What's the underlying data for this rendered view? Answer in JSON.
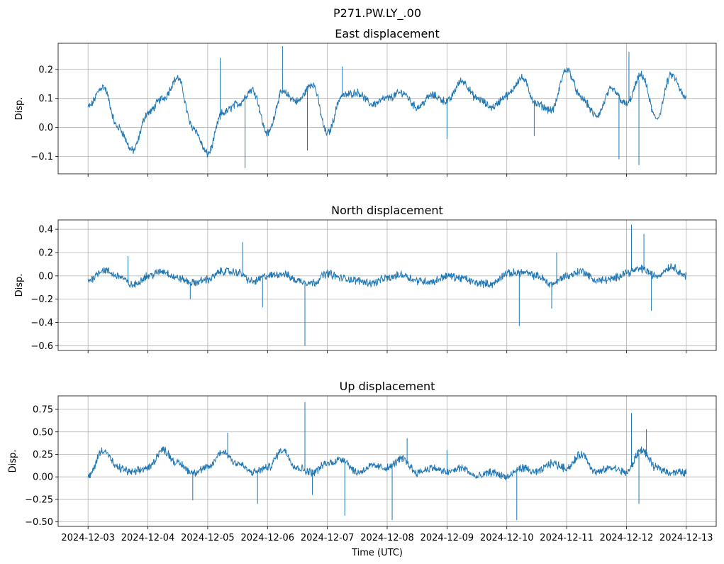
{
  "figure": {
    "suptitle": "P271.PW.LY_.00",
    "xlabel": "Time (UTC)"
  },
  "colors": {
    "line": "#1f77b4",
    "grid": "#b0b0b0",
    "axis": "#000000"
  },
  "chart_data": [
    {
      "type": "line",
      "title": "East displacement",
      "xlabel": "",
      "ylabel": "Disp.",
      "grid": true,
      "x_ticks": [
        "2024-12-03",
        "2024-12-04",
        "2024-12-05",
        "2024-12-06",
        "2024-12-07",
        "2024-12-08",
        "2024-12-09",
        "2024-12-10",
        "2024-12-11",
        "2024-12-12",
        "2024-12-13"
      ],
      "xlim": [
        "2024-12-02T12:00",
        "2024-12-13T12:00"
      ],
      "ylim": [
        -0.16,
        0.29
      ],
      "y_ticks": [
        -0.1,
        0.0,
        0.1,
        0.2
      ],
      "y_tick_labels": [
        "−0.1",
        "0.0",
        "0.1",
        "0.2"
      ],
      "series": [
        {
          "x": [
            "2024-12-03T00:00",
            "2024-12-03T06:00",
            "2024-12-03T12:00",
            "2024-12-03T18:00",
            "2024-12-04T00:00",
            "2024-12-04T06:00",
            "2024-12-04T12:00",
            "2024-12-04T18:00",
            "2024-12-05T00:00",
            "2024-12-05T06:00",
            "2024-12-05T12:00",
            "2024-12-05T18:00",
            "2024-12-06T00:00",
            "2024-12-06T06:00",
            "2024-12-06T12:00",
            "2024-12-06T18:00",
            "2024-12-07T00:00",
            "2024-12-07T06:00",
            "2024-12-07T12:00",
            "2024-12-07T18:00",
            "2024-12-08T00:00",
            "2024-12-08T06:00",
            "2024-12-08T12:00",
            "2024-12-08T18:00",
            "2024-12-09T00:00",
            "2024-12-09T06:00",
            "2024-12-09T12:00",
            "2024-12-09T18:00",
            "2024-12-10T00:00",
            "2024-12-10T06:00",
            "2024-12-10T12:00",
            "2024-12-10T18:00",
            "2024-12-11T00:00",
            "2024-12-11T06:00",
            "2024-12-11T12:00",
            "2024-12-11T18:00",
            "2024-12-12T00:00",
            "2024-12-12T06:00",
            "2024-12-12T12:00",
            "2024-12-12T18:00",
            "2024-12-13T00:00"
          ],
          "values": [
            0.07,
            0.14,
            0.0,
            -0.08,
            0.05,
            0.1,
            0.17,
            0.0,
            -0.09,
            0.05,
            0.08,
            0.13,
            -0.02,
            0.12,
            0.09,
            0.15,
            -0.02,
            0.11,
            0.12,
            0.08,
            0.1,
            0.12,
            0.07,
            0.11,
            0.09,
            0.16,
            0.1,
            0.07,
            0.11,
            0.17,
            0.08,
            0.06,
            0.2,
            0.1,
            0.04,
            0.13,
            0.08,
            0.18,
            0.03,
            0.18,
            0.1
          ]
        }
      ],
      "spikes": [
        {
          "x": "2024-12-05T05:00",
          "value": 0.24
        },
        {
          "x": "2024-12-05T15:00",
          "value": -0.14
        },
        {
          "x": "2024-12-06T06:00",
          "value": 0.28
        },
        {
          "x": "2024-12-06T16:00",
          "value": -0.08
        },
        {
          "x": "2024-12-07T06:00",
          "value": 0.21
        },
        {
          "x": "2024-12-09T00:00",
          "value": -0.04
        },
        {
          "x": "2024-12-10T11:00",
          "value": -0.03
        },
        {
          "x": "2024-12-11T21:00",
          "value": -0.11
        },
        {
          "x": "2024-12-12T01:00",
          "value": 0.26
        },
        {
          "x": "2024-12-12T05:00",
          "value": -0.13
        }
      ]
    },
    {
      "type": "line",
      "title": "North displacement",
      "xlabel": "",
      "ylabel": "Disp.",
      "grid": true,
      "x_ticks": [
        "2024-12-03",
        "2024-12-04",
        "2024-12-05",
        "2024-12-06",
        "2024-12-07",
        "2024-12-08",
        "2024-12-09",
        "2024-12-10",
        "2024-12-11",
        "2024-12-12",
        "2024-12-13"
      ],
      "xlim": [
        "2024-12-02T12:00",
        "2024-12-13T12:00"
      ],
      "ylim": [
        -0.64,
        0.48
      ],
      "y_ticks": [
        -0.6,
        -0.4,
        -0.2,
        0.0,
        0.2,
        0.4
      ],
      "y_tick_labels": [
        "−0.6",
        "−0.4",
        "−0.2",
        "0.0",
        "0.2",
        "0.4"
      ],
      "series": [
        {
          "x": [
            "2024-12-03T00:00",
            "2024-12-03T06:00",
            "2024-12-03T12:00",
            "2024-12-03T18:00",
            "2024-12-04T00:00",
            "2024-12-04T06:00",
            "2024-12-04T12:00",
            "2024-12-04T18:00",
            "2024-12-05T00:00",
            "2024-12-05T06:00",
            "2024-12-05T12:00",
            "2024-12-05T18:00",
            "2024-12-06T00:00",
            "2024-12-06T06:00",
            "2024-12-06T12:00",
            "2024-12-06T18:00",
            "2024-12-07T00:00",
            "2024-12-07T06:00",
            "2024-12-07T12:00",
            "2024-12-07T18:00",
            "2024-12-08T00:00",
            "2024-12-08T06:00",
            "2024-12-08T12:00",
            "2024-12-08T18:00",
            "2024-12-09T00:00",
            "2024-12-09T06:00",
            "2024-12-09T12:00",
            "2024-12-09T18:00",
            "2024-12-10T00:00",
            "2024-12-10T06:00",
            "2024-12-10T12:00",
            "2024-12-10T18:00",
            "2024-12-11T00:00",
            "2024-12-11T06:00",
            "2024-12-11T12:00",
            "2024-12-11T18:00",
            "2024-12-12T00:00",
            "2024-12-12T06:00",
            "2024-12-12T12:00",
            "2024-12-12T18:00",
            "2024-12-13T00:00"
          ],
          "values": [
            -0.04,
            0.05,
            0.0,
            -0.08,
            0.0,
            0.04,
            -0.02,
            -0.06,
            -0.03,
            0.04,
            0.03,
            -0.05,
            0.0,
            0.02,
            -0.04,
            -0.06,
            0.02,
            -0.02,
            -0.04,
            -0.06,
            -0.02,
            0.01,
            -0.04,
            -0.05,
            0.0,
            -0.02,
            -0.06,
            -0.07,
            0.02,
            0.03,
            0.0,
            -0.07,
            0.0,
            0.04,
            -0.04,
            -0.03,
            0.03,
            0.06,
            0.0,
            0.08,
            0.0
          ]
        }
      ],
      "spikes": [
        {
          "x": "2024-12-03T16:00",
          "value": 0.17
        },
        {
          "x": "2024-12-04T17:00",
          "value": -0.2
        },
        {
          "x": "2024-12-05T14:00",
          "value": 0.29
        },
        {
          "x": "2024-12-05T22:00",
          "value": -0.27
        },
        {
          "x": "2024-12-06T15:00",
          "value": -0.6
        },
        {
          "x": "2024-12-10T05:00",
          "value": -0.43
        },
        {
          "x": "2024-12-10T18:00",
          "value": -0.28
        },
        {
          "x": "2024-12-10T20:00",
          "value": 0.2
        },
        {
          "x": "2024-12-12T02:00",
          "value": 0.44
        },
        {
          "x": "2024-12-12T07:00",
          "value": 0.36
        },
        {
          "x": "2024-12-12T10:00",
          "value": -0.3
        }
      ]
    },
    {
      "type": "line",
      "title": "Up displacement",
      "xlabel": "Time (UTC)",
      "ylabel": "Disp.",
      "grid": true,
      "x_ticks": [
        "2024-12-03",
        "2024-12-04",
        "2024-12-05",
        "2024-12-06",
        "2024-12-07",
        "2024-12-08",
        "2024-12-09",
        "2024-12-10",
        "2024-12-11",
        "2024-12-12",
        "2024-12-13"
      ],
      "x_tick_labels": [
        "2024-12-03",
        "2024-12-04",
        "2024-12-05",
        "2024-12-06",
        "2024-12-07",
        "2024-12-08",
        "2024-12-09",
        "2024-12-10",
        "2024-12-11",
        "2024-12-12",
        "2024-12-13"
      ],
      "xlim": [
        "2024-12-02T12:00",
        "2024-12-13T12:00"
      ],
      "ylim": [
        -0.55,
        0.9
      ],
      "y_ticks": [
        -0.5,
        -0.25,
        0.0,
        0.25,
        0.5,
        0.75
      ],
      "y_tick_labels": [
        "−0.50",
        "−0.25",
        "0.00",
        "0.25",
        "0.50",
        "0.75"
      ],
      "series": [
        {
          "x": [
            "2024-12-03T00:00",
            "2024-12-03T06:00",
            "2024-12-03T12:00",
            "2024-12-03T18:00",
            "2024-12-04T00:00",
            "2024-12-04T06:00",
            "2024-12-04T12:00",
            "2024-12-04T18:00",
            "2024-12-05T00:00",
            "2024-12-05T06:00",
            "2024-12-05T12:00",
            "2024-12-05T18:00",
            "2024-12-06T00:00",
            "2024-12-06T06:00",
            "2024-12-06T12:00",
            "2024-12-06T18:00",
            "2024-12-07T00:00",
            "2024-12-07T06:00",
            "2024-12-07T12:00",
            "2024-12-07T18:00",
            "2024-12-08T00:00",
            "2024-12-08T06:00",
            "2024-12-08T12:00",
            "2024-12-08T18:00",
            "2024-12-09T00:00",
            "2024-12-09T06:00",
            "2024-12-09T12:00",
            "2024-12-09T18:00",
            "2024-12-10T00:00",
            "2024-12-10T06:00",
            "2024-12-10T12:00",
            "2024-12-10T18:00",
            "2024-12-11T00:00",
            "2024-12-11T06:00",
            "2024-12-11T12:00",
            "2024-12-11T18:00",
            "2024-12-12T00:00",
            "2024-12-12T06:00",
            "2024-12-12T12:00",
            "2024-12-12T18:00",
            "2024-12-13T00:00"
          ],
          "values": [
            0.0,
            0.3,
            0.1,
            0.05,
            0.1,
            0.3,
            0.15,
            0.05,
            0.1,
            0.28,
            0.15,
            0.05,
            0.1,
            0.3,
            0.1,
            0.05,
            0.15,
            0.2,
            0.05,
            0.12,
            0.1,
            0.2,
            0.05,
            0.1,
            0.05,
            0.1,
            0.0,
            0.05,
            0.0,
            0.1,
            0.05,
            0.15,
            0.1,
            0.25,
            0.05,
            0.1,
            0.05,
            0.3,
            0.1,
            0.05,
            0.05
          ]
        }
      ],
      "spikes": [
        {
          "x": "2024-12-04T18:00",
          "value": -0.26
        },
        {
          "x": "2024-12-05T08:00",
          "value": 0.49
        },
        {
          "x": "2024-12-05T20:00",
          "value": -0.3
        },
        {
          "x": "2024-12-06T15:00",
          "value": 0.83
        },
        {
          "x": "2024-12-06T18:00",
          "value": -0.2
        },
        {
          "x": "2024-12-07T07:00",
          "value": -0.43
        },
        {
          "x": "2024-12-08T02:00",
          "value": -0.48
        },
        {
          "x": "2024-12-08T08:00",
          "value": 0.43
        },
        {
          "x": "2024-12-09T00:00",
          "value": 0.3
        },
        {
          "x": "2024-12-10T04:00",
          "value": -0.48
        },
        {
          "x": "2024-12-12T02:00",
          "value": 0.71
        },
        {
          "x": "2024-12-12T05:00",
          "value": -0.3
        },
        {
          "x": "2024-12-12T08:00",
          "value": 0.53
        }
      ]
    }
  ]
}
